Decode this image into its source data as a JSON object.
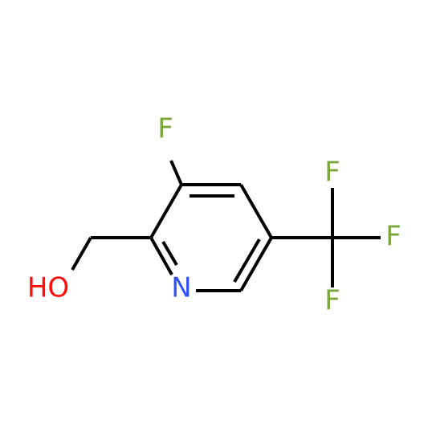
{
  "atoms": [
    {
      "label": "F"
    },
    {
      "label": "N"
    },
    {
      "label": "HO"
    },
    {
      "label": "F"
    },
    {
      "label": "F"
    },
    {
      "label": "F"
    }
  ]
}
